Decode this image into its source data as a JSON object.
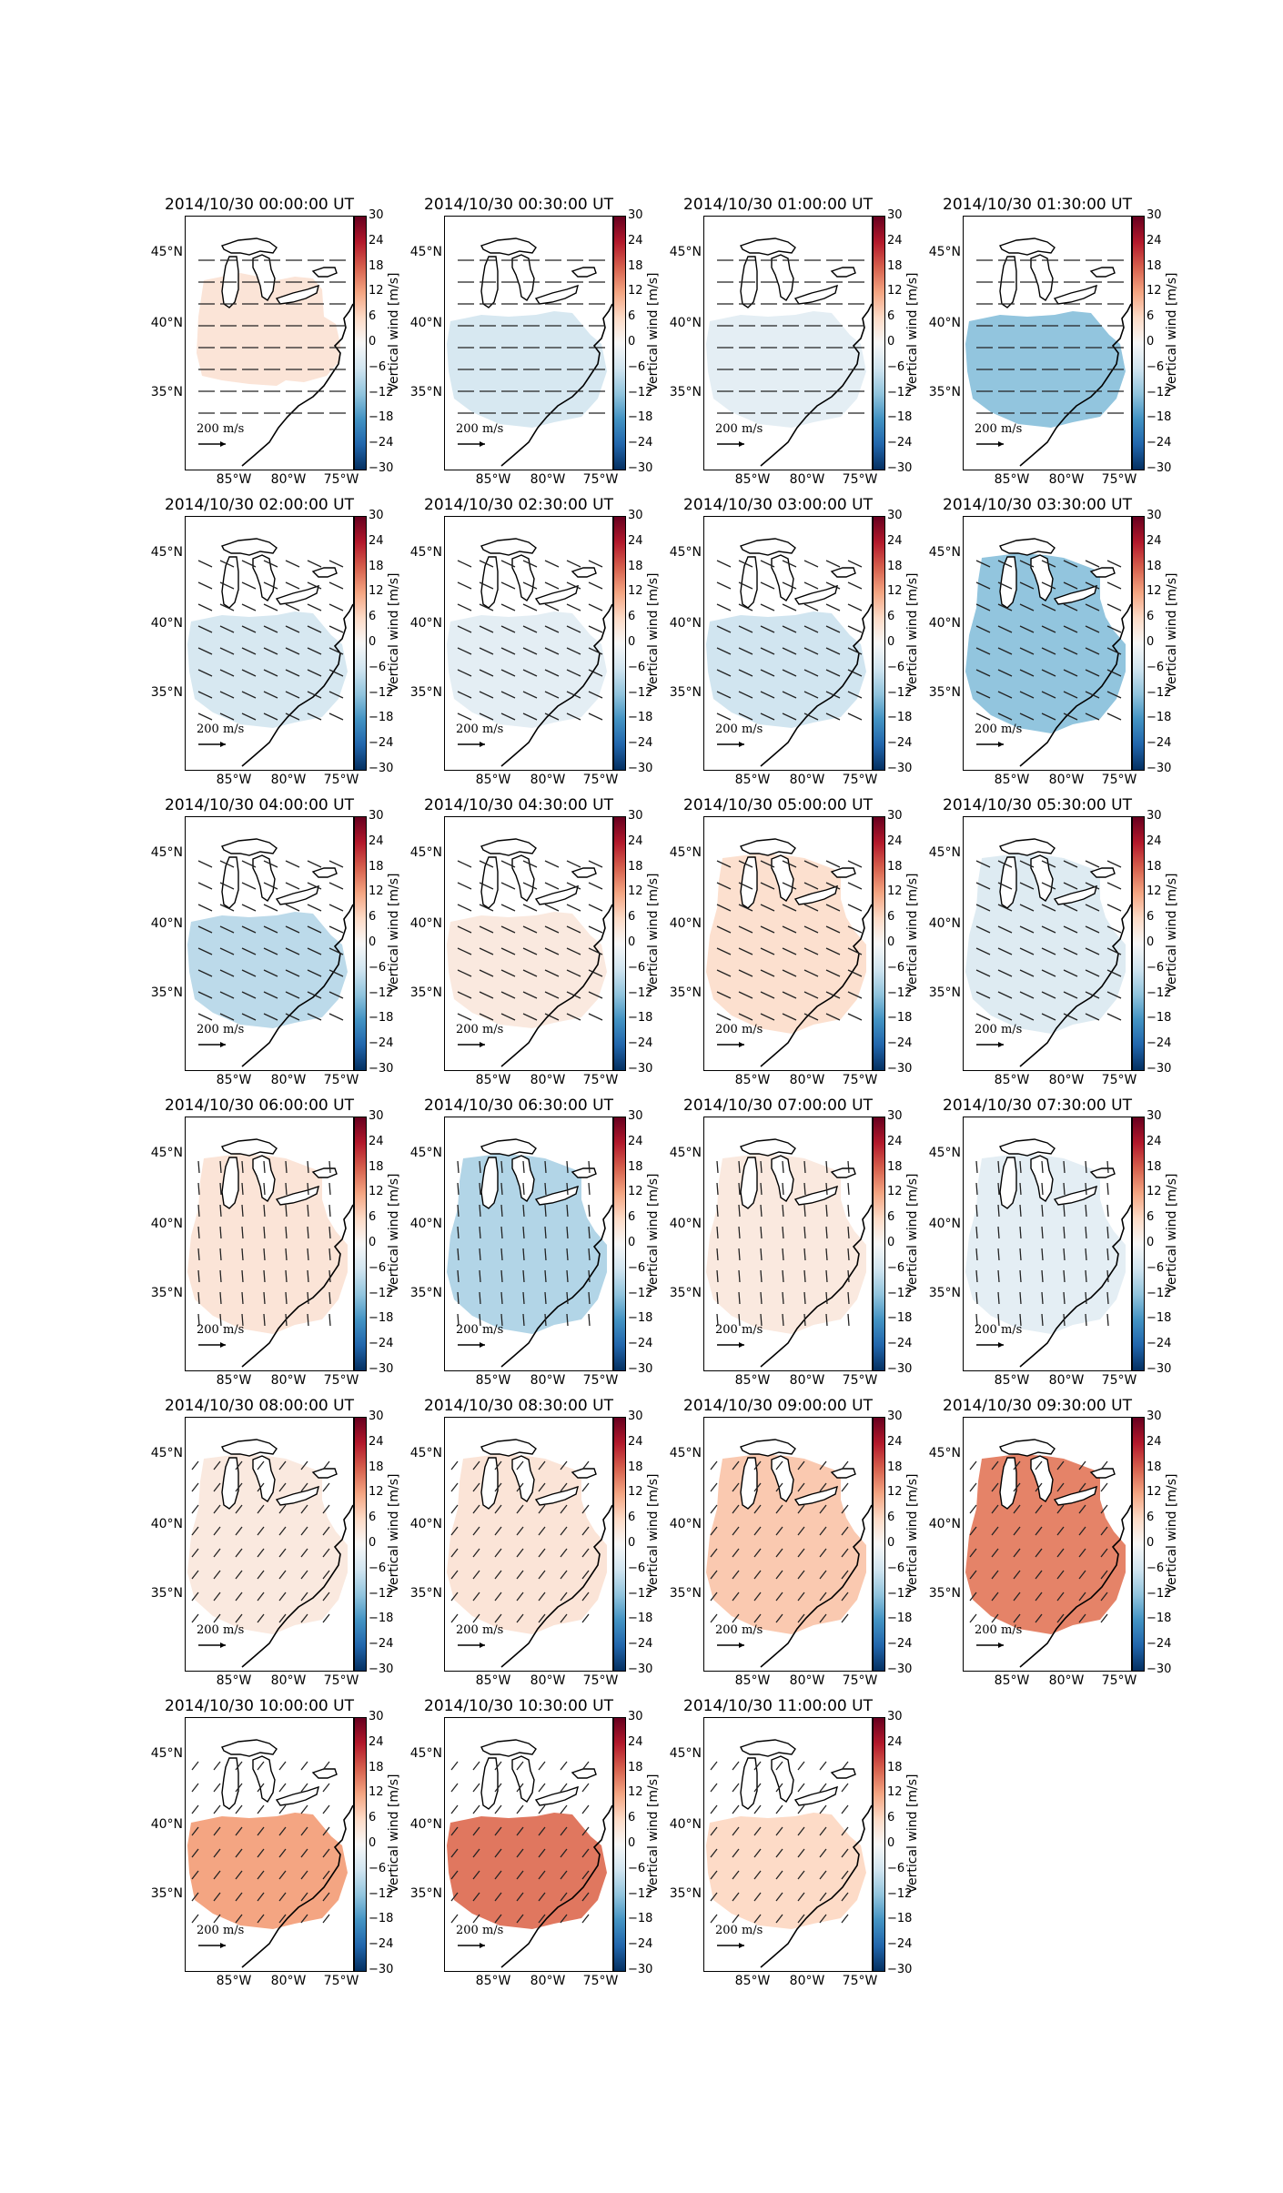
{
  "figure": {
    "colorbar": {
      "label": "Vertical wind [m/s]",
      "ticks": [
        "30",
        "24",
        "18",
        "12",
        "6",
        "0",
        "−6",
        "−12",
        "−18",
        "−24",
        "−30"
      ],
      "range": [
        -30,
        30
      ],
      "colors": [
        "#67001f",
        "#b2182b",
        "#d6604d",
        "#f4a582",
        "#fddbc7",
        "#f7f7f7",
        "#d1e5f0",
        "#92c5de",
        "#4393c3",
        "#2166ac",
        "#053061"
      ]
    },
    "lat_labels": [
      "45°N",
      "40°N",
      "35°N"
    ],
    "lon_labels": [
      "85°W",
      "80°W",
      "75°W"
    ],
    "scale_label": "200 m/s",
    "panels": [
      {
        "title": "2014/10/30 00:00:00 UT",
        "vertical_wind": 4,
        "region": "small",
        "arrow_dir": "east"
      },
      {
        "title": "2014/10/30 00:30:00 UT",
        "vertical_wind": -5,
        "region": "medium",
        "arrow_dir": "east"
      },
      {
        "title": "2014/10/30 01:00:00 UT",
        "vertical_wind": -3,
        "region": "medium",
        "arrow_dir": "east"
      },
      {
        "title": "2014/10/30 01:30:00 UT",
        "vertical_wind": -12,
        "region": "medium",
        "arrow_dir": "east"
      },
      {
        "title": "2014/10/30 02:00:00 UT",
        "vertical_wind": -5,
        "region": "medium",
        "arrow_dir": "southeast"
      },
      {
        "title": "2014/10/30 02:30:00 UT",
        "vertical_wind": -3,
        "region": "medium",
        "arrow_dir": "southeast"
      },
      {
        "title": "2014/10/30 03:00:00 UT",
        "vertical_wind": -6,
        "region": "medium",
        "arrow_dir": "southeast"
      },
      {
        "title": "2014/10/30 03:30:00 UT",
        "vertical_wind": -12,
        "region": "large",
        "arrow_dir": "southeast"
      },
      {
        "title": "2014/10/30 04:00:00 UT",
        "vertical_wind": -8,
        "region": "medium",
        "arrow_dir": "southeast"
      },
      {
        "title": "2014/10/30 04:30:00 UT",
        "vertical_wind": 3,
        "region": "medium",
        "arrow_dir": "southeast"
      },
      {
        "title": "2014/10/30 05:00:00 UT",
        "vertical_wind": 5,
        "region": "large",
        "arrow_dir": "southeast"
      },
      {
        "title": "2014/10/30 05:30:00 UT",
        "vertical_wind": -4,
        "region": "large",
        "arrow_dir": "southeast"
      },
      {
        "title": "2014/10/30 06:00:00 UT",
        "vertical_wind": 4,
        "region": "large",
        "arrow_dir": "south"
      },
      {
        "title": "2014/10/30 06:30:00 UT",
        "vertical_wind": -9,
        "region": "large",
        "arrow_dir": "south"
      },
      {
        "title": "2014/10/30 07:00:00 UT",
        "vertical_wind": 3,
        "region": "large",
        "arrow_dir": "south"
      },
      {
        "title": "2014/10/30 07:30:00 UT",
        "vertical_wind": -3,
        "region": "large",
        "arrow_dir": "south"
      },
      {
        "title": "2014/10/30 08:00:00 UT",
        "vertical_wind": 3,
        "region": "large",
        "arrow_dir": "southwest"
      },
      {
        "title": "2014/10/30 08:30:00 UT",
        "vertical_wind": 4,
        "region": "large",
        "arrow_dir": "southwest"
      },
      {
        "title": "2014/10/30 09:00:00 UT",
        "vertical_wind": 8,
        "region": "large",
        "arrow_dir": "southwest"
      },
      {
        "title": "2014/10/30 09:30:00 UT",
        "vertical_wind": 15,
        "region": "large",
        "arrow_dir": "southwest"
      },
      {
        "title": "2014/10/30 10:00:00 UT",
        "vertical_wind": 12,
        "region": "medium",
        "arrow_dir": "southwest"
      },
      {
        "title": "2014/10/30 10:30:00 UT",
        "vertical_wind": 16,
        "region": "medium",
        "arrow_dir": "southwest"
      },
      {
        "title": "2014/10/30 11:00:00 UT",
        "vertical_wind": 6,
        "region": "medium",
        "arrow_dir": "southwest"
      }
    ]
  }
}
